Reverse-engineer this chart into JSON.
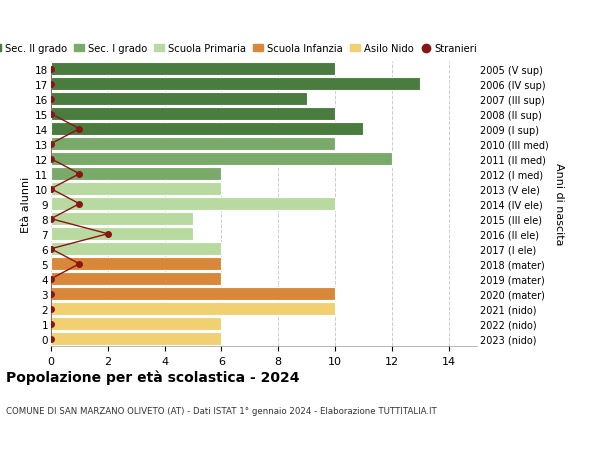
{
  "ages": [
    18,
    17,
    16,
    15,
    14,
    13,
    12,
    11,
    10,
    9,
    8,
    7,
    6,
    5,
    4,
    3,
    2,
    1,
    0
  ],
  "right_labels": [
    "2005 (V sup)",
    "2006 (IV sup)",
    "2007 (III sup)",
    "2008 (II sup)",
    "2009 (I sup)",
    "2010 (III med)",
    "2011 (II med)",
    "2012 (I med)",
    "2013 (V ele)",
    "2014 (IV ele)",
    "2015 (III ele)",
    "2016 (II ele)",
    "2017 (I ele)",
    "2018 (mater)",
    "2019 (mater)",
    "2020 (mater)",
    "2021 (nido)",
    "2022 (nido)",
    "2023 (nido)"
  ],
  "bar_values": [
    10,
    13,
    9,
    10,
    11,
    10,
    12,
    6,
    6,
    10,
    5,
    5,
    6,
    6,
    6,
    10,
    10,
    6,
    6
  ],
  "bar_colors": [
    "#4a7c3f",
    "#4a7c3f",
    "#4a7c3f",
    "#4a7c3f",
    "#4a7c3f",
    "#7aaa6a",
    "#7aaa6a",
    "#7aaa6a",
    "#b8d9a0",
    "#b8d9a0",
    "#b8d9a0",
    "#b8d9a0",
    "#b8d9a0",
    "#d9883a",
    "#d9883a",
    "#d9883a",
    "#f0d070",
    "#f0d070",
    "#f0d070"
  ],
  "stranieri_values": [
    0,
    0,
    0,
    0,
    1,
    0,
    0,
    1,
    0,
    1,
    0,
    2,
    0,
    1,
    0,
    0,
    0,
    0,
    0
  ],
  "stranieri_color": "#8b1414",
  "title": "Popolazione per età scolastica - 2024",
  "subtitle": "COMUNE DI SAN MARZANO OLIVETO (AT) - Dati ISTAT 1° gennaio 2024 - Elaborazione TUTTITALIA.IT",
  "ylabel": "Età alunni",
  "right_ylabel": "Anni di nascita",
  "xlim": [
    0,
    15
  ],
  "xticks": [
    0,
    2,
    4,
    6,
    8,
    10,
    12,
    14
  ],
  "legend_labels": [
    "Sec. II grado",
    "Sec. I grado",
    "Scuola Primaria",
    "Scuola Infanzia",
    "Asilo Nido",
    "Stranieri"
  ],
  "legend_colors": [
    "#4a7c3f",
    "#7aaa6a",
    "#b8d9a0",
    "#d9883a",
    "#f0d070",
    "#8b1414"
  ],
  "bg_color": "#ffffff",
  "grid_color": "#cccccc"
}
